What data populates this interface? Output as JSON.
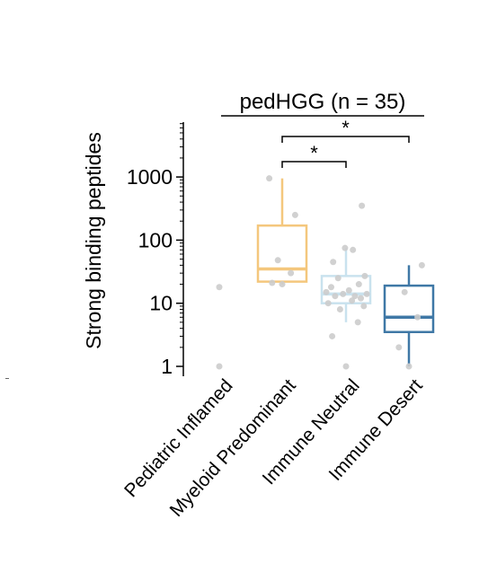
{
  "chart_data": {
    "type": "box",
    "title": "pedHGG (n = 35)",
    "xlabel": "",
    "ylabel": "Strong binding peptides",
    "yscale": "log",
    "ylim": [
      0.8,
      6000
    ],
    "yticks": [
      1,
      10,
      100,
      1000
    ],
    "ytick_labels": [
      "1",
      "10",
      "100",
      "1000"
    ],
    "grid": false,
    "legend": "none",
    "categories": [
      "Pediatric Inflamed",
      "Myeloid Predominant",
      "Immune Neutral",
      "Immune Desert"
    ],
    "boxes": [
      {
        "name": "Pediatric Inflamed",
        "color": "#d9d9d9",
        "show_box": false,
        "points": [
          1,
          18
        ]
      },
      {
        "name": "Myeloid Predominant",
        "color": "#f4c77d",
        "show_box": true,
        "q1": 22,
        "median": 35,
        "q3": 170,
        "whisker_low": 20,
        "whisker_high": 950,
        "points": [
          20,
          21,
          30,
          48,
          250,
          950
        ]
      },
      {
        "name": "Immune Neutral",
        "color": "#c9e2ee",
        "show_box": true,
        "q1": 10,
        "median": 14,
        "q3": 27,
        "whisker_low": 5,
        "whisker_high": 75,
        "points": [
          1,
          3,
          5,
          8,
          9,
          10,
          11,
          12,
          13,
          13,
          14,
          14,
          15,
          16,
          18,
          20,
          25,
          27,
          45,
          70,
          75,
          350
        ]
      },
      {
        "name": "Immune Desert",
        "color": "#3f78a6",
        "show_box": true,
        "q1": 3.5,
        "median": 6,
        "q3": 19,
        "whisker_low": 1,
        "whisker_high": 40,
        "points": [
          1,
          2,
          6,
          15,
          40
        ]
      }
    ],
    "significance": [
      {
        "from": "Myeloid Predominant",
        "to": "Immune Neutral",
        "label": "*"
      },
      {
        "from": "Myeloid Predominant",
        "to": "Immune Desert",
        "label": "*"
      }
    ],
    "point_color": "#cccccc"
  }
}
